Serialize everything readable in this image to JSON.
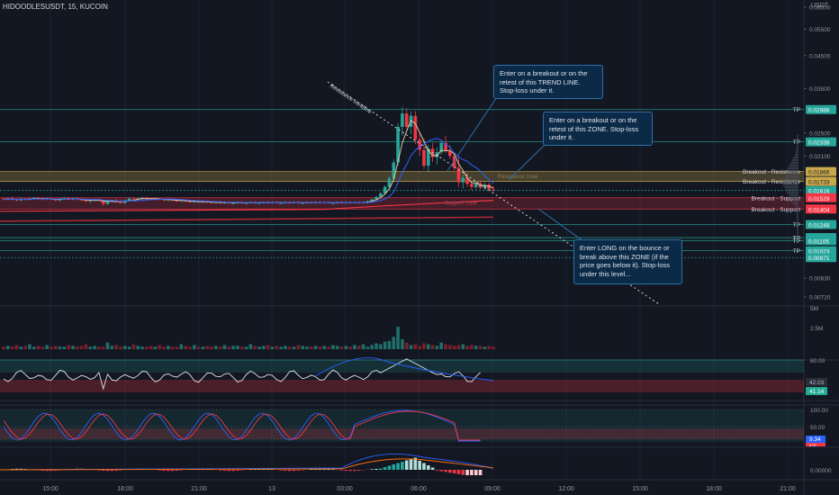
{
  "header": {
    "symbol": "HIDOODLESUSDT, 15, KUCOIN",
    "currency": "USDT"
  },
  "price_axis": {
    "ticks": [
      {
        "price": 0.065,
        "label": "0.06500"
      },
      {
        "price": 0.055,
        "label": "0.05500"
      },
      {
        "price": 0.045,
        "label": "0.04500"
      },
      {
        "price": 0.035,
        "label": "0.03500"
      },
      {
        "price": 0.025,
        "label": "0.02500"
      },
      {
        "price": 0.021,
        "label": "0.02100"
      },
      {
        "price": 0.0083,
        "label": "0.00830"
      },
      {
        "price": 0.0072,
        "label": "0.00720"
      }
    ]
  },
  "time_axis": {
    "labels": [
      "15:00",
      "18:00",
      "21:00",
      "13",
      "03:00",
      "06:00",
      "09:00",
      "12:00",
      "15:00",
      "18:00",
      "21:00"
    ]
  },
  "levels": [
    {
      "price": 0.02988,
      "label": "0.02988",
      "tag": "TP",
      "color": "#26a69a"
    },
    {
      "price": 0.02338,
      "label": "0.02338",
      "tag": "TP",
      "color": "#26a69a"
    },
    {
      "price": 0.01866,
      "label": "0.01866",
      "tag": "Breakout - Resistance",
      "color": "#c9a84c"
    },
    {
      "price": 0.01733,
      "label": "0.01733",
      "tag": "Breakout - Resistance",
      "color": "#c9a84c"
    },
    {
      "price": 0.01616,
      "label": "0.01616",
      "tag": "",
      "color": "#26a69a"
    },
    {
      "price": 0.01529,
      "label": "0.01529",
      "tag": "Breakout - Support",
      "color": "#f23645"
    },
    {
      "price": 0.01404,
      "label": "0.01404",
      "tag": "Breakout - Support",
      "color": "#f23645"
    },
    {
      "price": 0.01248,
      "label": "0.01248",
      "tag": "TP",
      "color": "#26a69a"
    },
    {
      "price": 0.0113,
      "label": "0.01130",
      "tag": "TP",
      "color": "#26a69a"
    },
    {
      "price": 0.01105,
      "label": "0.01105",
      "tag": "TP",
      "color": "#26a69a"
    },
    {
      "price": 0.01023,
      "label": "0.01023",
      "tag": "TP",
      "color": "#26a69a"
    },
    {
      "price": 0.00971,
      "label": "0.00971",
      "tag": "",
      "color": "#26a69a"
    }
  ],
  "drawing_labels": {
    "trendline": "Resistance trendline",
    "resistance_zone": "Resistance zone",
    "support_zone": "Support zone"
  },
  "callouts": [
    {
      "text": "Enter on a breakout or on the\nretest of this TREND LINE.\nStop-loss under it."
    },
    {
      "text": "Enter on a breakout or on the\nretest of this ZONE. Stop-loss\nunder it."
    },
    {
      "text": "Enter LONG on the bounce or\nbreak above this ZONE (if the\nprice goes below it). Stop-loss\nunder this level..."
    }
  ],
  "volume_pane": {
    "scale_labels": [
      "5M",
      "2.5M"
    ],
    "values": [
      0.3,
      0.4,
      0.3,
      0.5,
      0.3,
      0.4,
      0.6,
      0.3,
      0.4,
      0.3,
      0.5,
      0.3,
      0.4,
      0.3,
      0.3,
      0.5,
      0.4,
      0.3,
      0.4,
      0.6,
      0.3,
      0.4,
      0.3,
      0.3,
      0.8,
      0.4,
      0.5,
      0.3,
      0.4,
      0.3,
      0.6,
      0.4,
      0.3,
      0.3,
      0.4,
      0.3,
      0.5,
      0.3,
      0.4,
      0.3,
      0.3,
      0.6,
      0.4,
      0.3,
      0.5,
      0.3,
      0.3,
      0.4,
      0.3,
      0.4,
      0.3,
      0.5,
      0.3,
      0.4,
      0.4,
      0.3,
      0.3,
      0.6,
      0.4,
      0.3,
      0.4,
      0.5,
      0.3,
      0.4,
      0.3,
      0.4,
      0.3,
      0.3,
      0.5,
      0.4,
      0.3,
      0.3,
      0.4,
      0.3,
      0.4,
      0.3,
      0.5,
      0.4,
      0.3,
      0.4,
      0.3,
      0.5,
      0.4,
      0.6,
      0.3,
      0.5,
      0.7,
      0.6,
      0.9,
      1.0,
      1.5,
      2.7,
      1.2,
      0.8,
      0.5,
      0.6,
      0.4,
      0.7,
      0.6,
      0.5,
      0.4,
      0.8,
      0.6,
      0.5,
      0.4,
      0.5,
      0.6,
      0.4,
      0.5,
      0.4,
      0.4,
      0.3,
      0.4,
      0.3
    ]
  },
  "rsi_pane": {
    "levels": [
      {
        "value": 80,
        "label": "80.00"
      }
    ],
    "current": [
      {
        "value": "42.03",
        "color": "#b2b5be"
      },
      {
        "value": "41.14",
        "color": "#22ab94"
      }
    ]
  },
  "stoch_pane": {
    "levels": [
      {
        "value": 100,
        "label": "100.00"
      },
      {
        "value": 50,
        "label": "50.00"
      }
    ],
    "current": [
      {
        "value": "9.34",
        "color": "#2962ff"
      },
      {
        "value": "8.02",
        "color": "#f23645"
      }
    ]
  },
  "macd_pane": {
    "levels": [
      {
        "value": 0,
        "label": "0.00000"
      }
    ]
  },
  "chart_data": {
    "type": "candlestick",
    "symbol": "HIDOODLESUSDT",
    "interval": "15",
    "exchange": "KUCOIN",
    "candles": [
      [
        0.0152,
        0.0153,
        0.015,
        0.0151
      ],
      [
        0.0151,
        0.0153,
        0.015,
        0.0152
      ],
      [
        0.0152,
        0.0154,
        0.015,
        0.0151
      ],
      [
        0.0151,
        0.0152,
        0.0149,
        0.015
      ],
      [
        0.015,
        0.0153,
        0.0149,
        0.0152
      ],
      [
        0.0152,
        0.0153,
        0.015,
        0.0151
      ],
      [
        0.0151,
        0.0153,
        0.015,
        0.0152
      ],
      [
        0.0152,
        0.0154,
        0.0151,
        0.0153
      ],
      [
        0.0153,
        0.0154,
        0.0151,
        0.0152
      ],
      [
        0.0152,
        0.0153,
        0.015,
        0.0151
      ],
      [
        0.0151,
        0.0153,
        0.015,
        0.0152
      ],
      [
        0.0152,
        0.0153,
        0.015,
        0.0151
      ],
      [
        0.0151,
        0.0152,
        0.0149,
        0.015
      ],
      [
        0.015,
        0.0153,
        0.0149,
        0.0152
      ],
      [
        0.0152,
        0.0154,
        0.0151,
        0.0153
      ],
      [
        0.0153,
        0.0154,
        0.015,
        0.0151
      ],
      [
        0.0151,
        0.0153,
        0.015,
        0.0152
      ],
      [
        0.0152,
        0.0153,
        0.015,
        0.0151
      ],
      [
        0.0151,
        0.0152,
        0.0149,
        0.015
      ],
      [
        0.015,
        0.0152,
        0.0148,
        0.0149
      ],
      [
        0.0149,
        0.0151,
        0.0147,
        0.015
      ],
      [
        0.015,
        0.0152,
        0.0149,
        0.0151
      ],
      [
        0.0151,
        0.0152,
        0.0149,
        0.015
      ],
      [
        0.015,
        0.0151,
        0.0144,
        0.0146
      ],
      [
        0.0146,
        0.015,
        0.0145,
        0.0149
      ],
      [
        0.0149,
        0.0151,
        0.0148,
        0.015
      ],
      [
        0.015,
        0.0152,
        0.0148,
        0.0149
      ],
      [
        0.0149,
        0.0151,
        0.0146,
        0.0147
      ],
      [
        0.0147,
        0.0151,
        0.0146,
        0.015
      ],
      [
        0.015,
        0.0153,
        0.0149,
        0.0152
      ],
      [
        0.0152,
        0.0153,
        0.015,
        0.0151
      ],
      [
        0.0151,
        0.0153,
        0.015,
        0.0152
      ],
      [
        0.0152,
        0.0154,
        0.0151,
        0.0153
      ],
      [
        0.0153,
        0.0154,
        0.0151,
        0.0152
      ],
      [
        0.0152,
        0.0153,
        0.015,
        0.0151
      ],
      [
        0.0151,
        0.0153,
        0.015,
        0.0152
      ],
      [
        0.0152,
        0.0153,
        0.015,
        0.0151
      ],
      [
        0.0151,
        0.0152,
        0.0149,
        0.015
      ],
      [
        0.015,
        0.0152,
        0.0149,
        0.0151
      ],
      [
        0.0151,
        0.0152,
        0.0149,
        0.015
      ],
      [
        0.015,
        0.0151,
        0.0148,
        0.0149
      ],
      [
        0.0149,
        0.0151,
        0.0148,
        0.015
      ],
      [
        0.015,
        0.0151,
        0.0148,
        0.0149
      ],
      [
        0.0149,
        0.015,
        0.0147,
        0.0148
      ],
      [
        0.0148,
        0.015,
        0.0147,
        0.0149
      ],
      [
        0.0149,
        0.015,
        0.0147,
        0.0148
      ],
      [
        0.0148,
        0.015,
        0.0147,
        0.0149
      ],
      [
        0.0149,
        0.015,
        0.0147,
        0.0148
      ],
      [
        0.0148,
        0.0149,
        0.0146,
        0.0147
      ],
      [
        0.0147,
        0.0149,
        0.0146,
        0.0148
      ],
      [
        0.0148,
        0.0149,
        0.0146,
        0.0147
      ],
      [
        0.0147,
        0.0149,
        0.0146,
        0.0148
      ],
      [
        0.0148,
        0.0149,
        0.0146,
        0.0147
      ],
      [
        0.0147,
        0.0148,
        0.0146,
        0.0147
      ],
      [
        0.0147,
        0.0149,
        0.0146,
        0.0148
      ],
      [
        0.0148,
        0.0149,
        0.0146,
        0.0147
      ],
      [
        0.0147,
        0.0148,
        0.0146,
        0.0147
      ],
      [
        0.0147,
        0.0149,
        0.0146,
        0.0148
      ],
      [
        0.0148,
        0.0149,
        0.0146,
        0.0147
      ],
      [
        0.0147,
        0.0148,
        0.0146,
        0.0147
      ],
      [
        0.0147,
        0.0149,
        0.0146,
        0.0148
      ],
      [
        0.0148,
        0.0149,
        0.0146,
        0.0147
      ],
      [
        0.0147,
        0.0149,
        0.0146,
        0.0148
      ],
      [
        0.0148,
        0.0149,
        0.0146,
        0.0147
      ],
      [
        0.0147,
        0.0148,
        0.0146,
        0.0147
      ],
      [
        0.0147,
        0.0149,
        0.0146,
        0.0148
      ],
      [
        0.0148,
        0.0149,
        0.0146,
        0.0147
      ],
      [
        0.0147,
        0.0149,
        0.0146,
        0.0148
      ],
      [
        0.0148,
        0.0149,
        0.0146,
        0.0147
      ],
      [
        0.0147,
        0.0148,
        0.0146,
        0.0147
      ],
      [
        0.0147,
        0.0149,
        0.0146,
        0.0148
      ],
      [
        0.0148,
        0.0149,
        0.0146,
        0.0147
      ],
      [
        0.0147,
        0.0149,
        0.0146,
        0.0148
      ],
      [
        0.0148,
        0.0149,
        0.0146,
        0.0147
      ],
      [
        0.0147,
        0.0149,
        0.0146,
        0.0148
      ],
      [
        0.0148,
        0.0149,
        0.0146,
        0.0147
      ],
      [
        0.0147,
        0.0148,
        0.0146,
        0.0147
      ],
      [
        0.0147,
        0.0149,
        0.0146,
        0.0148
      ],
      [
        0.0148,
        0.0149,
        0.0146,
        0.0147
      ],
      [
        0.0147,
        0.0149,
        0.0146,
        0.0148
      ],
      [
        0.0148,
        0.0149,
        0.0146,
        0.0147
      ],
      [
        0.0147,
        0.0149,
        0.0146,
        0.0148
      ],
      [
        0.0148,
        0.0149,
        0.0146,
        0.0147
      ],
      [
        0.0147,
        0.0149,
        0.0146,
        0.0148
      ],
      [
        0.0148,
        0.015,
        0.0146,
        0.0149
      ],
      [
        0.0149,
        0.0152,
        0.0148,
        0.0151
      ],
      [
        0.0151,
        0.0155,
        0.015,
        0.0154
      ],
      [
        0.0154,
        0.016,
        0.0153,
        0.0158
      ],
      [
        0.0158,
        0.0168,
        0.0157,
        0.0166
      ],
      [
        0.0166,
        0.018,
        0.0164,
        0.0177
      ],
      [
        0.0177,
        0.0205,
        0.0175,
        0.02
      ],
      [
        0.02,
        0.027,
        0.0195,
        0.0262
      ],
      [
        0.0262,
        0.0305,
        0.0245,
        0.029
      ],
      [
        0.029,
        0.0302,
        0.0258,
        0.0262
      ],
      [
        0.0262,
        0.0294,
        0.0248,
        0.0285
      ],
      [
        0.0285,
        0.0295,
        0.023,
        0.0238
      ],
      [
        0.0238,
        0.025,
        0.021,
        0.022
      ],
      [
        0.022,
        0.024,
        0.019,
        0.0195
      ],
      [
        0.0195,
        0.0228,
        0.0186,
        0.0222
      ],
      [
        0.0222,
        0.0232,
        0.02,
        0.0208
      ],
      [
        0.0208,
        0.0224,
        0.0197,
        0.0216
      ],
      [
        0.0216,
        0.0236,
        0.0212,
        0.0232
      ],
      [
        0.0232,
        0.0245,
        0.0215,
        0.0218
      ],
      [
        0.0218,
        0.0228,
        0.0205,
        0.021
      ],
      [
        0.021,
        0.0215,
        0.0188,
        0.0192
      ],
      [
        0.0192,
        0.021,
        0.0166,
        0.0172
      ],
      [
        0.0172,
        0.0182,
        0.0164,
        0.0178
      ],
      [
        0.0178,
        0.0184,
        0.0166,
        0.017
      ],
      [
        0.017,
        0.0174,
        0.0162,
        0.0166
      ],
      [
        0.0166,
        0.0174,
        0.0163,
        0.0171
      ],
      [
        0.0171,
        0.0175,
        0.0163,
        0.0165
      ],
      [
        0.0165,
        0.0172,
        0.0162,
        0.0169
      ],
      [
        0.0169,
        0.0172,
        0.0161,
        0.0163
      ],
      [
        0.0163,
        0.0167,
        0.016,
        0.0162
      ]
    ]
  }
}
